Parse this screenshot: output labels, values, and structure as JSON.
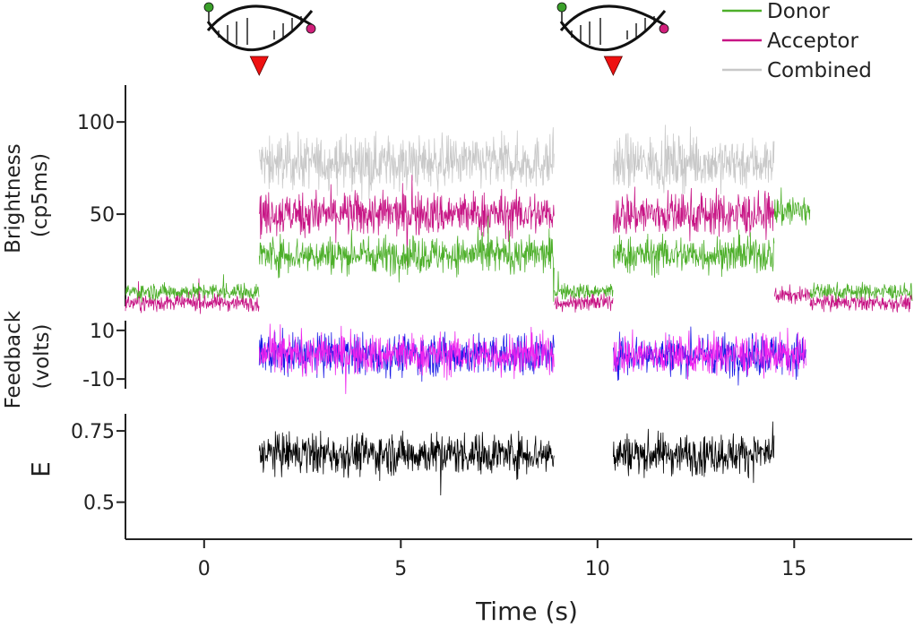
{
  "chart_data": [
    {
      "type": "line",
      "panel": "brightness",
      "ylabel": "Brightness\n(cp5ms)",
      "ylim": [
        0,
        120
      ],
      "yticks": [
        50,
        100
      ],
      "legend": {
        "placement": "top-right",
        "entries": [
          "Donor",
          "Acceptor",
          "Combined"
        ]
      },
      "series": [
        {
          "name": "Donor",
          "color": "#4daf2a",
          "segments": [
            {
              "x": [
                -2,
                1.4
              ],
              "level": 8
            },
            {
              "x": [
                1.4,
                8.9
              ],
              "level": 28
            },
            {
              "x": [
                8.9,
                10.4
              ],
              "level": 8
            },
            {
              "x": [
                10.4,
                14.5
              ],
              "level": 28
            },
            {
              "x": [
                14.5,
                15.4
              ],
              "level": 52
            },
            {
              "x": [
                15.4,
                18
              ],
              "level": 8
            }
          ]
        },
        {
          "name": "Acceptor",
          "color": "#c71585",
          "segments": [
            {
              "x": [
                -2,
                1.4
              ],
              "level": 2
            },
            {
              "x": [
                1.4,
                8.9
              ],
              "level": 50
            },
            {
              "x": [
                8.9,
                10.4
              ],
              "level": 2
            },
            {
              "x": [
                10.4,
                14.5
              ],
              "level": 50
            },
            {
              "x": [
                14.5,
                15.4
              ],
              "level": 6
            },
            {
              "x": [
                15.4,
                18
              ],
              "level": 2
            }
          ]
        },
        {
          "name": "Combined",
          "color": "#c8c8c8",
          "segments": [
            {
              "x": [
                1.4,
                8.9
              ],
              "level": 78
            },
            {
              "x": [
                10.4,
                14.5
              ],
              "level": 78
            }
          ]
        }
      ],
      "annotations": [
        {
          "type": "event-marker",
          "x": 1.4,
          "color": "#ee1111"
        },
        {
          "type": "event-marker",
          "x": 10.4,
          "color": "#ee1111"
        }
      ]
    },
    {
      "type": "line",
      "panel": "feedback",
      "ylabel": "Feedback\n(volts)",
      "ylim": [
        -14,
        14
      ],
      "yticks": [
        10,
        -10
      ],
      "series": [
        {
          "name": "",
          "color": "#1a1ae6",
          "segments": [
            {
              "x": [
                1.4,
                8.9
              ],
              "level": 0
            },
            {
              "x": [
                10.4,
                15.3
              ],
              "level": 0
            }
          ]
        },
        {
          "name": "",
          "color": "#ee22ee",
          "segments": [
            {
              "x": [
                1.4,
                8.9
              ],
              "level": 0
            },
            {
              "x": [
                10.4,
                15.3
              ],
              "level": 0
            }
          ]
        }
      ]
    },
    {
      "type": "line",
      "panel": "efficiency",
      "ylabel": "E",
      "xlabel": "Time (s)",
      "xlim": [
        -2,
        18
      ],
      "xticks": [
        0,
        5,
        10,
        15
      ],
      "ylim": [
        0.37,
        0.81
      ],
      "yticks": [
        0.75,
        0.5
      ],
      "ytick_labels": [
        "0.75",
        "0.5"
      ],
      "series": [
        {
          "name": "",
          "color": "#000000",
          "segments": [
            {
              "x": [
                1.4,
                8.9
              ],
              "level": 0.67
            },
            {
              "x": [
                10.4,
                14.5
              ],
              "level": 0.67
            }
          ]
        }
      ]
    }
  ]
}
